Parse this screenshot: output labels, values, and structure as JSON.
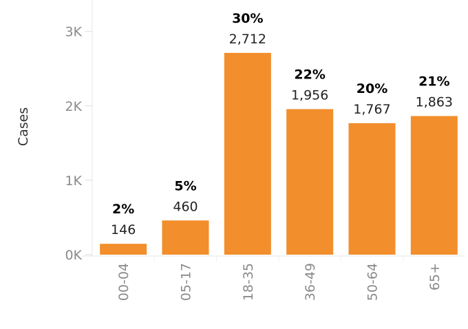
{
  "chart_data": {
    "type": "bar",
    "ylabel": "Cases",
    "xlabel": "",
    "categories": [
      "00-04",
      "05-17",
      "18-35",
      "36-49",
      "50-64",
      "65+"
    ],
    "values": [
      146,
      460,
      2712,
      1956,
      1767,
      1863
    ],
    "value_labels": [
      "146",
      "460",
      "2,712",
      "1,956",
      "1,767",
      "1,863"
    ],
    "percent_labels": [
      "2%",
      "5%",
      "30%",
      "22%",
      "20%",
      "21%"
    ],
    "yticks": [
      0,
      1000,
      2000,
      3000
    ],
    "ytick_labels": [
      "0K",
      "1K",
      "2K",
      "3K"
    ],
    "ylim": [
      0,
      3400
    ],
    "grid": false,
    "bar_color": "#f28e2b"
  }
}
